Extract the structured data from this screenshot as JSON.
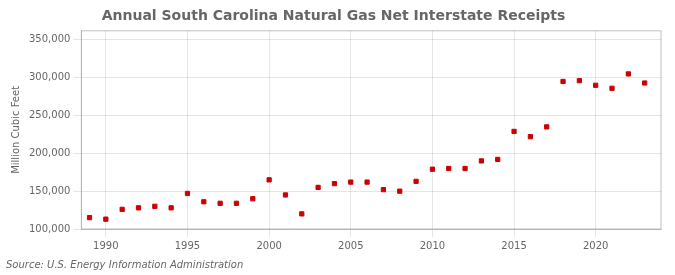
{
  "chart_data": {
    "type": "scatter",
    "title": "Annual South Carolina Natural Gas Net Interstate Receipts",
    "ylabel": "Million Cubic Feet",
    "annotations": [
      "Source: U.S. Energy Information Administration"
    ],
    "x": [
      1989,
      1990,
      1991,
      1992,
      1993,
      1994,
      1995,
      1996,
      1997,
      1998,
      1999,
      2000,
      2001,
      2002,
      2003,
      2004,
      2005,
      2006,
      2007,
      2008,
      2009,
      2010,
      2011,
      2012,
      2013,
      2014,
      2015,
      2016,
      2017,
      2018,
      2019,
      2020,
      2021,
      2022,
      2023
    ],
    "values": [
      115000,
      113000,
      126000,
      128000,
      130000,
      128000,
      147000,
      136000,
      134000,
      134000,
      140000,
      165000,
      145000,
      120000,
      155000,
      160000,
      162000,
      162000,
      152000,
      150000,
      163000,
      179000,
      180000,
      180000,
      190000,
      192000,
      229000,
      222000,
      235000,
      295000,
      296000,
      290000,
      286000,
      305000,
      293000
    ],
    "color": "#cc0000",
    "marker": "square",
    "xlim": [
      1988.5,
      2024
    ],
    "ylim": [
      100000,
      362000
    ],
    "xticks": [
      1990,
      1995,
      2000,
      2005,
      2010,
      2015,
      2020
    ],
    "yticks": [
      {
        "value": 100000,
        "label": "100,000"
      },
      {
        "value": 150000,
        "label": "150,000"
      },
      {
        "value": 200000,
        "label": "200,000"
      },
      {
        "value": 250000,
        "label": "250,000"
      },
      {
        "value": 300000,
        "label": "300,000"
      },
      {
        "value": 350000,
        "label": "350,000"
      }
    ],
    "grid": true
  }
}
